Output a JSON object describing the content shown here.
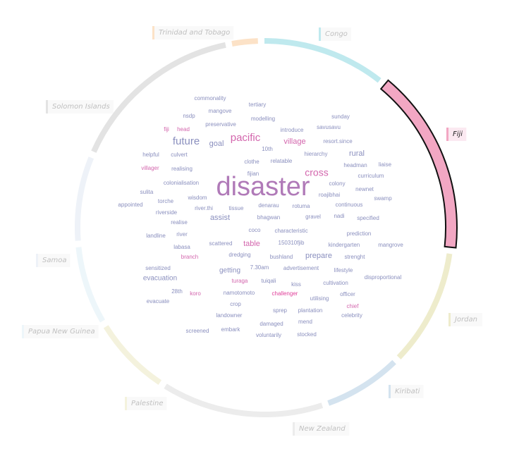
{
  "chart_data": {
    "type": "word_cloud_with_ring",
    "selected_country": "Fiji",
    "countries": [
      {
        "name": "Congo",
        "color": "#bfe9ee",
        "start": 0,
        "end": 38
      },
      {
        "name": "Fiji",
        "color": "#f2a7c3",
        "start": 40,
        "end": 96,
        "selected": true
      },
      {
        "name": "Jordan",
        "color": "#eeeccc",
        "start": 98,
        "end": 134
      },
      {
        "name": "Kiribati",
        "color": "#d4e3ef",
        "start": 136,
        "end": 160
      },
      {
        "name": "New Zealand",
        "color": "#ececec",
        "start": 162,
        "end": 212
      },
      {
        "name": "Palestine",
        "color": "#f4f2dd",
        "start": 214,
        "end": 238
      },
      {
        "name": "Papua New Guinea",
        "color": "#edf6fa",
        "start": 240,
        "end": 264
      },
      {
        "name": "Samoa",
        "color": "#eef2f8",
        "start": 266,
        "end": 292
      },
      {
        "name": "Solomon Islands",
        "color": "#e3e3e3",
        "start": 294,
        "end": 348
      },
      {
        "name": "Trinidad and Tobago",
        "color": "#fce2c7",
        "start": 350,
        "end": 358
      }
    ],
    "words": [
      {
        "text": "disaster",
        "size": 38,
        "color": "#b07ab8"
      },
      {
        "text": "future",
        "size": 15,
        "color": "#8a8fbe"
      },
      {
        "text": "pacific",
        "size": 15,
        "color": "#d366ad"
      },
      {
        "text": "cross",
        "size": 14,
        "color": "#d366ad"
      },
      {
        "text": "village",
        "size": 11,
        "color": "#d366ad"
      },
      {
        "text": "goal",
        "size": 11,
        "color": "#8a8fbe"
      },
      {
        "text": "rural",
        "size": 11,
        "color": "#8a8fbe"
      },
      {
        "text": "assist",
        "size": 11,
        "color": "#8a8fbe"
      },
      {
        "text": "table",
        "size": 11,
        "color": "#d366ad"
      },
      {
        "text": "prepare",
        "size": 11,
        "color": "#8a8fbe"
      },
      {
        "text": "evacuation",
        "size": 10,
        "color": "#8a8fbe"
      },
      {
        "text": "getting",
        "size": 10,
        "color": "#8a8fbe"
      },
      {
        "text": "commonality",
        "size": 8,
        "color": "#8a8fbe"
      },
      {
        "text": "tertiary",
        "size": 8,
        "color": "#8a8fbe"
      },
      {
        "text": "mangove",
        "size": 8,
        "color": "#8a8fbe"
      },
      {
        "text": "nsdp",
        "size": 8,
        "color": "#8a8fbe"
      },
      {
        "text": "modelling",
        "size": 8,
        "color": "#8a8fbe"
      },
      {
        "text": "sunday",
        "size": 8,
        "color": "#8a8fbe"
      },
      {
        "text": "preservative",
        "size": 8,
        "color": "#8a8fbe"
      },
      {
        "text": "fiji",
        "size": 8,
        "color": "#d366ad"
      },
      {
        "text": "head",
        "size": 8,
        "color": "#d366ad"
      },
      {
        "text": "introduce",
        "size": 8,
        "color": "#8a8fbe"
      },
      {
        "text": "savusavu",
        "size": 8,
        "color": "#8a8fbe"
      },
      {
        "text": "resort.since",
        "size": 8,
        "color": "#8a8fbe"
      },
      {
        "text": "10th",
        "size": 8,
        "color": "#8a8fbe"
      },
      {
        "text": "helpful",
        "size": 8,
        "color": "#8a8fbe"
      },
      {
        "text": "culvert",
        "size": 8,
        "color": "#8a8fbe"
      },
      {
        "text": "hierarchy",
        "size": 8,
        "color": "#8a8fbe"
      },
      {
        "text": "clothe",
        "size": 8,
        "color": "#8a8fbe"
      },
      {
        "text": "relatable",
        "size": 8,
        "color": "#8a8fbe"
      },
      {
        "text": "headman",
        "size": 8,
        "color": "#8a8fbe"
      },
      {
        "text": "liaise",
        "size": 8,
        "color": "#8a8fbe"
      },
      {
        "text": "villager",
        "size": 8,
        "color": "#d366ad"
      },
      {
        "text": "realising",
        "size": 8,
        "color": "#8a8fbe"
      },
      {
        "text": "fijian",
        "size": 8,
        "color": "#8a8fbe"
      },
      {
        "text": "curriculum",
        "size": 8,
        "color": "#8a8fbe"
      },
      {
        "text": "colonialisation",
        "size": 8,
        "color": "#8a8fbe"
      },
      {
        "text": "colony",
        "size": 8,
        "color": "#8a8fbe"
      },
      {
        "text": "newnet",
        "size": 8,
        "color": "#8a8fbe"
      },
      {
        "text": "sulita",
        "size": 8,
        "color": "#8a8fbe"
      },
      {
        "text": "wisdom",
        "size": 8,
        "color": "#8a8fbe"
      },
      {
        "text": "roajibhai",
        "size": 8,
        "color": "#8a8fbe"
      },
      {
        "text": "swamp",
        "size": 8,
        "color": "#8a8fbe"
      },
      {
        "text": "torche",
        "size": 8,
        "color": "#8a8fbe"
      },
      {
        "text": "appointed",
        "size": 8,
        "color": "#8a8fbe"
      },
      {
        "text": "denarau",
        "size": 8,
        "color": "#8a8fbe"
      },
      {
        "text": "continuous",
        "size": 8,
        "color": "#8a8fbe"
      },
      {
        "text": "riverside",
        "size": 8,
        "color": "#8a8fbe"
      },
      {
        "text": "river.thi",
        "size": 8,
        "color": "#8a8fbe"
      },
      {
        "text": "tissue",
        "size": 8,
        "color": "#8a8fbe"
      },
      {
        "text": "rotuma",
        "size": 8,
        "color": "#8a8fbe"
      },
      {
        "text": "bhagwan",
        "size": 8,
        "color": "#8a8fbe"
      },
      {
        "text": "gravel",
        "size": 8,
        "color": "#8a8fbe"
      },
      {
        "text": "nadi",
        "size": 8,
        "color": "#8a8fbe"
      },
      {
        "text": "specified",
        "size": 8,
        "color": "#8a8fbe"
      },
      {
        "text": "realise",
        "size": 8,
        "color": "#8a8fbe"
      },
      {
        "text": "coco",
        "size": 8,
        "color": "#8a8fbe"
      },
      {
        "text": "characteristic",
        "size": 8,
        "color": "#8a8fbe"
      },
      {
        "text": "landline",
        "size": 8,
        "color": "#8a8fbe"
      },
      {
        "text": "river",
        "size": 8,
        "color": "#8a8fbe"
      },
      {
        "text": "prediction",
        "size": 8,
        "color": "#8a8fbe"
      },
      {
        "text": "labasa",
        "size": 8,
        "color": "#8a8fbe"
      },
      {
        "text": "scattered",
        "size": 8,
        "color": "#8a8fbe"
      },
      {
        "text": "150310fjib",
        "size": 8,
        "color": "#8a8fbe"
      },
      {
        "text": "kindergarten",
        "size": 8,
        "color": "#8a8fbe"
      },
      {
        "text": "mangrove",
        "size": 8,
        "color": "#8a8fbe"
      },
      {
        "text": "branch",
        "size": 8,
        "color": "#d366ad"
      },
      {
        "text": "dredging",
        "size": 8,
        "color": "#8a8fbe"
      },
      {
        "text": "bushland",
        "size": 8,
        "color": "#8a8fbe"
      },
      {
        "text": "strenght",
        "size": 8,
        "color": "#8a8fbe"
      },
      {
        "text": "sensitized",
        "size": 8,
        "color": "#8a8fbe"
      },
      {
        "text": "7.30am",
        "size": 8,
        "color": "#8a8fbe"
      },
      {
        "text": "advertisement",
        "size": 8,
        "color": "#8a8fbe"
      },
      {
        "text": "lifestyle",
        "size": 8,
        "color": "#8a8fbe"
      },
      {
        "text": "disproportional",
        "size": 8,
        "color": "#8a8fbe"
      },
      {
        "text": "turaga",
        "size": 8,
        "color": "#d366ad"
      },
      {
        "text": "tuiqali",
        "size": 8,
        "color": "#8a8fbe"
      },
      {
        "text": "kiss",
        "size": 8,
        "color": "#8a8fbe"
      },
      {
        "text": "cultivation",
        "size": 8,
        "color": "#8a8fbe"
      },
      {
        "text": "28th",
        "size": 8,
        "color": "#8a8fbe"
      },
      {
        "text": "koro",
        "size": 8,
        "color": "#d366ad"
      },
      {
        "text": "namotomoto",
        "size": 8,
        "color": "#8a8fbe"
      },
      {
        "text": "challenger",
        "size": 8,
        "color": "#e0409a"
      },
      {
        "text": "utilising",
        "size": 8,
        "color": "#8a8fbe"
      },
      {
        "text": "officer",
        "size": 8,
        "color": "#8a8fbe"
      },
      {
        "text": "evacuate",
        "size": 8,
        "color": "#8a8fbe"
      },
      {
        "text": "crop",
        "size": 8,
        "color": "#8a8fbe"
      },
      {
        "text": "chief",
        "size": 8,
        "color": "#d366ad"
      },
      {
        "text": "sprep",
        "size": 8,
        "color": "#8a8fbe"
      },
      {
        "text": "plantation",
        "size": 8,
        "color": "#8a8fbe"
      },
      {
        "text": "landowner",
        "size": 8,
        "color": "#8a8fbe"
      },
      {
        "text": "celebrity",
        "size": 8,
        "color": "#8a8fbe"
      },
      {
        "text": "damaged",
        "size": 8,
        "color": "#8a8fbe"
      },
      {
        "text": "mend",
        "size": 8,
        "color": "#8a8fbe"
      },
      {
        "text": "screened",
        "size": 8,
        "color": "#8a8fbe"
      },
      {
        "text": "embark",
        "size": 8,
        "color": "#8a8fbe"
      },
      {
        "text": "voluntarily",
        "size": 8,
        "color": "#8a8fbe"
      },
      {
        "text": "stocked",
        "size": 8,
        "color": "#8a8fbe"
      }
    ]
  }
}
